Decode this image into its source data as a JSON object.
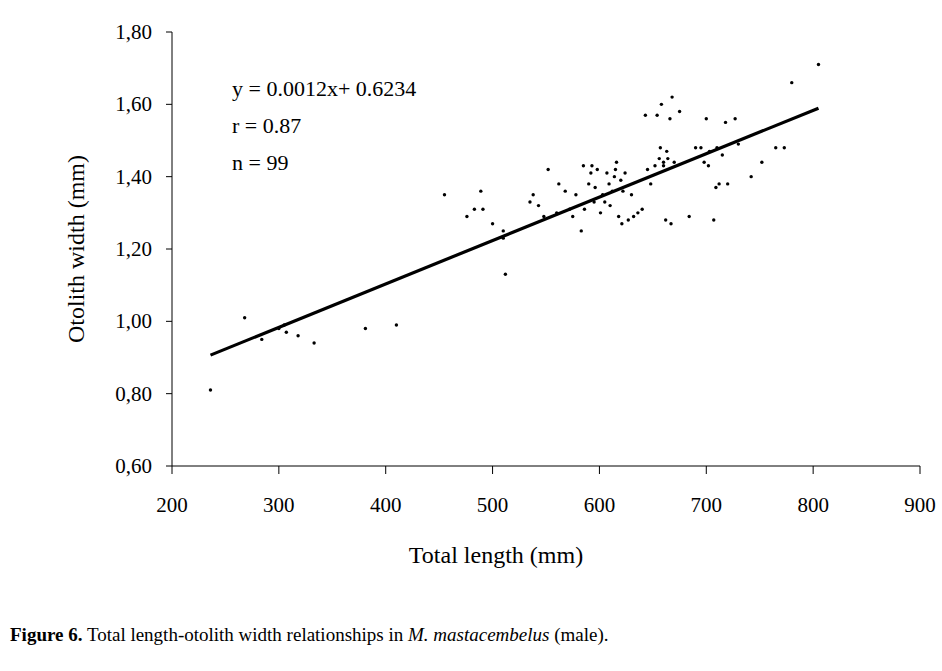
{
  "chart_data": {
    "type": "scatter",
    "title": [
      "Figure 6.",
      " Total length-otolith width relationships in ",
      "M. mastacembelus",
      " (male)."
    ],
    "x_label": "Total length (mm)",
    "y_label": "Otolith width (mm)",
    "annotations": [
      "y = 0.0012x+ 0.6234",
      "r = 0.87",
      "n = 99"
    ],
    "xlim": [
      200,
      900
    ],
    "xticks": [
      200,
      300,
      400,
      500,
      600,
      700,
      800,
      900
    ],
    "ylim": [
      0.6,
      1.8
    ],
    "yticks": [
      {
        "value": 0.6,
        "label": "0,60"
      },
      {
        "value": 0.8,
        "label": "0,80"
      },
      {
        "value": 1.0,
        "label": "1,00"
      },
      {
        "value": 1.2,
        "label": "1,20"
      },
      {
        "value": 1.4,
        "label": "1,40"
      },
      {
        "value": 1.6,
        "label": "1,60"
      },
      {
        "value": 1.8,
        "label": "1,80"
      }
    ],
    "grid": false,
    "series": [
      {
        "type": "scatter",
        "color": "#000000",
        "marker": "dot",
        "x": [
          236,
          268,
          284,
          300,
          305,
          307,
          318,
          333,
          381,
          410,
          455,
          476,
          483,
          489,
          491,
          500,
          510,
          512,
          510,
          538,
          543,
          548,
          552,
          560,
          562,
          568,
          572,
          575,
          578,
          583,
          585,
          586,
          590,
          592,
          593,
          595,
          596,
          598,
          601,
          603,
          605,
          607,
          609,
          610,
          612,
          614,
          615,
          616,
          618,
          620,
          621,
          622,
          624,
          627,
          630,
          632,
          636,
          640,
          643,
          648,
          652,
          654,
          656,
          657,
          658,
          660,
          662,
          663,
          664,
          666,
          667,
          668,
          670,
          675,
          684,
          690,
          695,
          698,
          700,
          703,
          707,
          709,
          710,
          712,
          715,
          718,
          720,
          727,
          730,
          742,
          752,
          765,
          773,
          780,
          805,
          535,
          645,
          660,
          702
        ],
        "values": [
          0.81,
          1.01,
          0.95,
          0.98,
          0.99,
          0.97,
          0.96,
          0.94,
          0.98,
          0.99,
          1.35,
          1.29,
          1.31,
          1.36,
          1.31,
          1.27,
          1.23,
          1.13,
          1.25,
          1.35,
          1.32,
          1.29,
          1.42,
          1.3,
          1.38,
          1.36,
          1.31,
          1.29,
          1.35,
          1.25,
          1.43,
          1.31,
          1.38,
          1.41,
          1.43,
          1.33,
          1.37,
          1.42,
          1.3,
          1.35,
          1.33,
          1.41,
          1.38,
          1.32,
          1.36,
          1.4,
          1.42,
          1.44,
          1.29,
          1.39,
          1.27,
          1.36,
          1.41,
          1.28,
          1.35,
          1.29,
          1.3,
          1.31,
          1.57,
          1.38,
          1.43,
          1.57,
          1.45,
          1.48,
          1.6,
          1.44,
          1.28,
          1.47,
          1.45,
          1.56,
          1.27,
          1.62,
          1.44,
          1.58,
          1.29,
          1.48,
          1.48,
          1.44,
          1.56,
          1.47,
          1.28,
          1.37,
          1.48,
          1.38,
          1.46,
          1.55,
          1.38,
          1.56,
          1.49,
          1.4,
          1.44,
          1.48,
          1.48,
          1.66,
          1.71,
          1.33,
          1.42,
          1.43,
          1.43
        ]
      },
      {
        "type": "line",
        "color": "#000000",
        "line_style": "solid",
        "x": [
          236,
          805
        ],
        "values": [
          0.9066,
          1.5894
        ]
      }
    ]
  }
}
